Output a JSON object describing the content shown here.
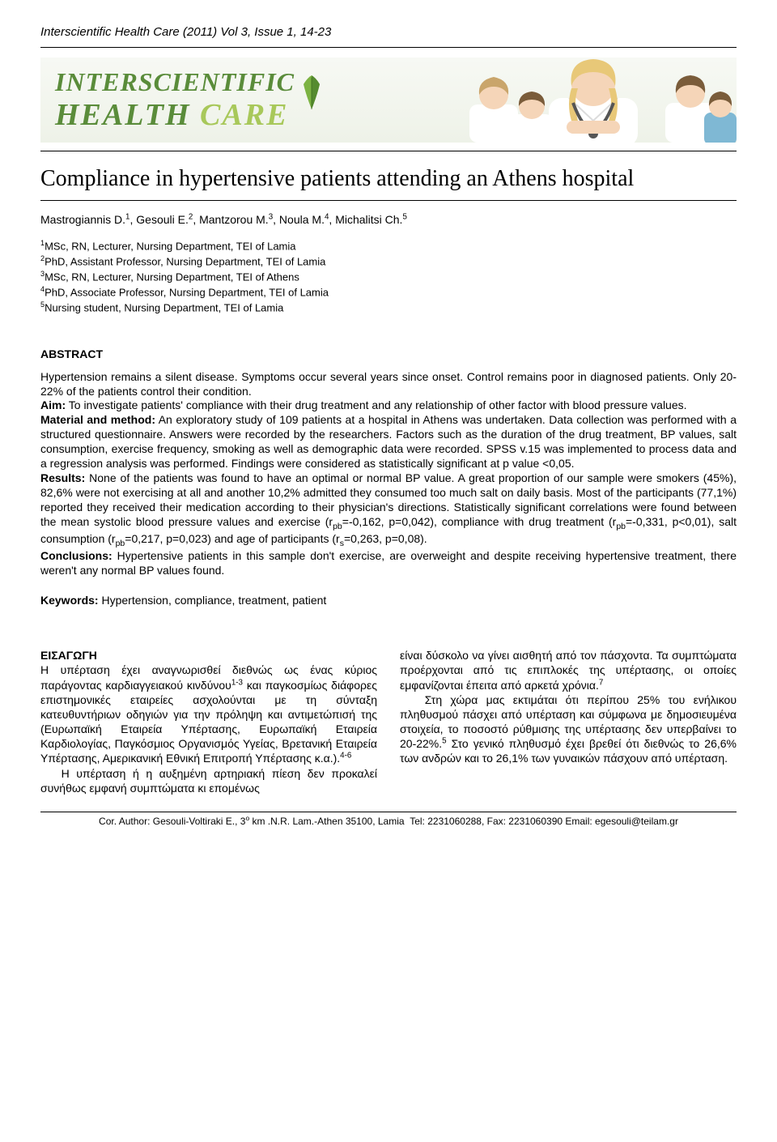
{
  "journal_ref": "Interscientific Health Care (2011) Vol 3, Issue 1, 14-23",
  "banner": {
    "line1": "INTERSCIENTIFIC",
    "line2_part1": "HEALTH ",
    "line2_part2": "CARE",
    "bg_gradient_top": "#f7f9f4",
    "bg_gradient_bottom": "#eef2e8",
    "text_color": "#5a8c3a",
    "care_color": "#a8c85a",
    "leaf_colors": [
      "#7cb342",
      "#558b2f"
    ],
    "skin": "#f5d5b8",
    "hair1": "#e8c878",
    "hair2": "#7a5c3a",
    "hair3": "#c9a56b",
    "coat": "#ffffff",
    "scrub": "#7fb8d4",
    "steth": "#555555"
  },
  "title": "Compliance in hypertensive patients attending an Athens hospital",
  "authors_html": "Mastrogiannis D.<sup>1</sup>, Gesouli E.<sup>2</sup>, Mantzorou M.<sup>3</sup>, Noula M.<sup>4</sup>, Michalitsi Ch.<sup>5</sup>",
  "affiliations": [
    "<sup>1</sup>MSc, RN, Lecturer, Nursing Department, TEI of Lamia",
    "<sup>2</sup>PhD, Assistant Professor, Nursing Department, TEI of Lamia",
    "<sup>3</sup>MSc, RN, Lecturer, Nursing Department, TEI of Athens",
    "<sup>4</sup>PhD, Associate Professor, Nursing Department, TEI of Lamia",
    "<sup>5</sup>Nursing student, Nursing Department, TEI of Lamia"
  ],
  "abstract_heading": "ABSTRACT",
  "abstract_html": "Hypertension remains a silent disease. Symptoms occur several years since onset. Control remains poor in diagnosed patients. Only 20-22% of the patients control their condition.<br><b>Aim:</b> To investigate patients' compliance with their drug treatment and any relationship of other factor with blood pressure values.<br><b>Material and method:</b> An exploratory study of 109 patients at a hospital in Athens was undertaken. Data collection was performed with a structured questionnaire. Answers were recorded by the researchers. Factors such as the duration of the drug treatment, BP values, salt consumption, exercise frequency, smoking as well as demographic data were recorded. SPSS v.15 was implemented to process data and a regression analysis was performed. Findings were considered as statistically significant at p value &lt;0,05.<br><b>Results:</b> None of the patients was found to have an optimal or normal BP value. A great proportion of our sample were smokers (45%), 82,6% were not exercising at all and another 10,2% admitted they consumed too much salt on daily basis. Most of the participants (77,1%) reported they received their medication according to their physician's directions. Statistically significant correlations were found between the mean systolic blood pressure values and exercise (r<sub>pb</sub>=-0,162, p=0,042), compliance with drug treatment (r<sub>pb</sub>=-0,331, p&lt;0,01), salt consumption (r<sub>pb</sub>=0,217, p=0,023) and age of participants (r<sub>s</sub>=0,263, p=0,08).<br><b>Conclusions:</b> Hypertensive patients in this sample don't exercise, are overweight and despite receiving hypertensive treatment, there weren't any normal BP values found.",
  "keywords_label": "Keywords:",
  "keywords_text": " Hypertension, compliance, treatment, patient",
  "intro_heading": "ΕΙΣΑΓΩΓΗ",
  "intro_col1_html": "Η υπέρταση έχει αναγνωρισθεί διεθνώς ως ένας κύριος παράγοντας καρδιαγγειακού κινδύνου<sup>1-3</sup> και παγκοσμίως διάφορες επιστημονικές εταιρείες ασχολούνται με τη σύνταξη κατευθυντήριων οδηγιών για την πρόληψη και αντιμετώπισή της (Ευρωπαϊκή Εταιρεία Υπέρτασης, Ευρωπαϊκή Εταιρεία Καρδιολογίας, Παγκόσμιος Οργανισμός Υγείας, Βρετανική Εταιρεία Υπέρτασης, Αμερικανική Εθνική Επιτροπή Υπέρτασης κ.α.).<sup>4-6</sup><br>&nbsp;&nbsp;&nbsp;Η υπέρταση ή η αυξημένη αρτηριακή πίεση δεν προκαλεί συνήθως εμφανή συμπτώματα κι επομένως",
  "intro_col2_html": "είναι δύσκολο να γίνει αισθητή από τον πάσχοντα. Τα συμπτώματα προέρχονται από τις επιπλοκές της υπέρτασης, οι οποίες εμφανίζονται έπειτα από αρκετά χρόνια.<sup>7</sup><br>&nbsp;&nbsp;&nbsp;Στη χώρα μας εκτιμάται ότι περίπου 25% του ενήλικου πληθυσμού πάσχει από υπέρταση και σύμφωνα με δημοσιευμένα στοιχεία, το ποσοστό ρύθμισης της υπέρτασης δεν υπερβαίνει το 20-22%.<sup>5</sup> Στο γενικό πληθυσμό έχει βρεθεί ότι διεθνώς το 26,6% των ανδρών και το 26,1% των γυναικών πάσχουν από υπέρταση.",
  "footer_html": "Cor. Author: Gesouli-Voltiraki E., 3<sup>o</sup> km .N.R. Lam.-Athen 35100, Lamia &nbsp;Tel: 2231060288, Fax: 2231060390 Email: egesouli@teilam.gr"
}
